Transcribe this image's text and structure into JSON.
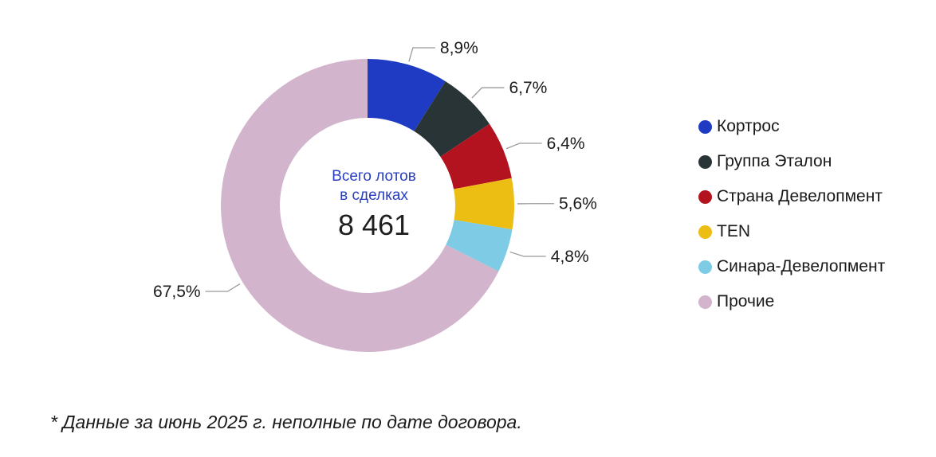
{
  "chart_data": {
    "type": "pie",
    "variant": "donut",
    "center_caption_line1": "Всего лотов",
    "center_caption_line2": "в сделках",
    "center_total": "8 461",
    "legend_position": "right",
    "slices": [
      {
        "name": "Кортрос",
        "value": 8.9,
        "label": "8,9%",
        "color": "#1f3bc4"
      },
      {
        "name": "Группа Эталон",
        "value": 6.7,
        "label": "6,7%",
        "color": "#283436"
      },
      {
        "name": "Страна Девелопмент",
        "value": 6.4,
        "label": "6,4%",
        "color": "#b3131e"
      },
      {
        "name": "TEN",
        "value": 5.6,
        "label": "5,6%",
        "color": "#ecbd12"
      },
      {
        "name": "Синара-Девелопмент",
        "value": 4.8,
        "label": "4,8%",
        "color": "#7ecbe6"
      },
      {
        "name": "Прочие",
        "value": 67.5,
        "label": "67,5%",
        "color": "#d2b4cd"
      }
    ]
  },
  "footnote": "* Данные за июнь 2025 г. неполные по дате договора."
}
